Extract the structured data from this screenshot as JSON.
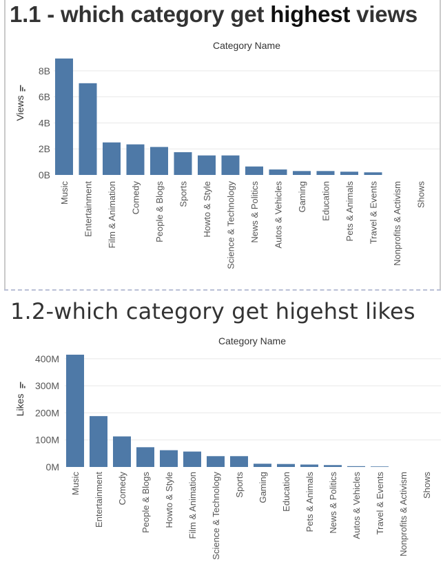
{
  "panels": {
    "views": {
      "title_prefix": "1.1 - which category get ",
      "title_bold": "highest",
      "title_suffix": " views"
    },
    "likes": {
      "title": "1.2-which category get higehst likes"
    }
  },
  "colors": {
    "bar": "#4e79a7",
    "text": "#555555",
    "grid": "#e8e8e8"
  },
  "chart_data": [
    {
      "type": "bar",
      "title": "1.1 - which category get highest views",
      "subtitle": "Category Name",
      "ylabel": "Views",
      "ylim": [
        0,
        9000000000
      ],
      "yticks": [
        0,
        2000000000,
        4000000000,
        6000000000,
        8000000000
      ],
      "ytick_labels": [
        "0B",
        "2B",
        "4B",
        "6B",
        "8B"
      ],
      "categories": [
        "Music",
        "Entertainment",
        "Film & Animation",
        "Comedy",
        "People & Blogs",
        "Sports",
        "Howto & Style",
        "Science & Technology",
        "News & Politics",
        "Autos & Vehicles",
        "Gaming",
        "Education",
        "Pets & Animals",
        "Travel & Events",
        "Nonprofits & Activism",
        "Shows"
      ],
      "values": [
        8950000000,
        7050000000,
        2500000000,
        2350000000,
        2150000000,
        1750000000,
        1500000000,
        1500000000,
        650000000,
        420000000,
        300000000,
        300000000,
        250000000,
        200000000,
        0,
        0
      ],
      "grid": true,
      "legend": "none"
    },
    {
      "type": "bar",
      "title": "1.2-which category get higehst likes",
      "subtitle": "Category Name",
      "ylabel": "Likes",
      "ylim": [
        0,
        420000000
      ],
      "yticks": [
        0,
        100000000,
        200000000,
        300000000,
        400000000
      ],
      "ytick_labels": [
        "0M",
        "100M",
        "200M",
        "300M",
        "400M"
      ],
      "categories": [
        "Music",
        "Entertainment",
        "Comedy",
        "People & Blogs",
        "Howto & Style",
        "Film & Animation",
        "Science & Technology",
        "Sports",
        "Gaming",
        "Education",
        "Pets & Animals",
        "News & Politics",
        "Autos & Vehicles",
        "Travel & Events",
        "Nonprofits & Activism",
        "Shows"
      ],
      "values": [
        415000000,
        188000000,
        113000000,
        73000000,
        62000000,
        57000000,
        40000000,
        40000000,
        12000000,
        11000000,
        9000000,
        7000000,
        3000000,
        2000000,
        0,
        0
      ],
      "grid": true,
      "legend": "none"
    }
  ]
}
